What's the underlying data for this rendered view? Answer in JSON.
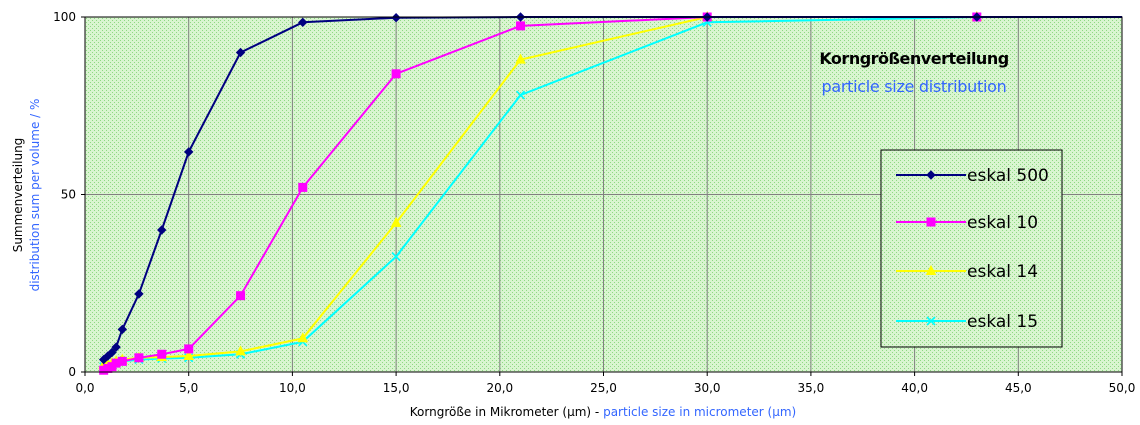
{
  "chart_data": {
    "type": "line",
    "xlabel_parts": [
      "Korngröße in Mikrometer (µm) - ",
      "particle size in micrometer (µm)"
    ],
    "ylabel_parts": [
      "Summenverteilung",
      "distribution sum per volume / %"
    ],
    "xlim": [
      0,
      50
    ],
    "ylim": [
      0,
      100
    ],
    "x_ticks": [
      "0,0",
      "5,0",
      "10,0",
      "15,0",
      "20,0",
      "25,0",
      "30,0",
      "35,0",
      "40,0",
      "45,0",
      "50,0"
    ],
    "y_ticks": [
      "0",
      "50",
      "100"
    ],
    "grid": true,
    "plot_background": "#d9f5d0",
    "annotations": [
      "Korngrößenverteilung",
      "particle size distribution"
    ],
    "legend_position": "right",
    "series": [
      {
        "name": "eskal 500",
        "color": "#000080",
        "marker": "diamond",
        "points": [
          [
            0.9,
            3.5
          ],
          [
            1.1,
            4.5
          ],
          [
            1.3,
            5.5
          ],
          [
            1.5,
            7.0
          ],
          [
            1.8,
            12.0
          ],
          [
            2.6,
            22.0
          ],
          [
            3.7,
            40.0
          ],
          [
            5.0,
            62.0
          ],
          [
            7.5,
            90.0
          ],
          [
            10.5,
            98.5
          ],
          [
            15.0,
            99.8
          ],
          [
            21.0,
            100
          ],
          [
            30.0,
            100
          ],
          [
            43.0,
            100
          ],
          [
            50.0,
            100
          ]
        ]
      },
      {
        "name": "eskal 10",
        "color": "#ff00ff",
        "marker": "square",
        "points": [
          [
            0.9,
            0.5
          ],
          [
            1.1,
            1.0
          ],
          [
            1.3,
            1.5
          ],
          [
            1.5,
            2.5
          ],
          [
            1.8,
            3.0
          ],
          [
            2.6,
            4.0
          ],
          [
            3.7,
            5.0
          ],
          [
            5.0,
            6.5
          ],
          [
            7.5,
            21.5
          ],
          [
            10.5,
            52.0
          ],
          [
            15.0,
            84.0
          ],
          [
            21.0,
            97.5
          ],
          [
            30.0,
            100
          ],
          [
            43.0,
            100
          ],
          [
            50.0,
            100
          ]
        ]
      },
      {
        "name": "eskal 14",
        "color": "#ffff00",
        "marker": "triangle",
        "points": [
          [
            0.9,
            2.0
          ],
          [
            1.1,
            2.2
          ],
          [
            1.3,
            2.5
          ],
          [
            1.5,
            3.0
          ],
          [
            1.8,
            3.5
          ],
          [
            2.6,
            4.0
          ],
          [
            3.7,
            4.2
          ],
          [
            5.0,
            4.5
          ],
          [
            7.5,
            5.8
          ],
          [
            10.5,
            9.5
          ],
          [
            15.0,
            42.0
          ],
          [
            21.0,
            88.0
          ],
          [
            30.0,
            100
          ],
          [
            43.0,
            100
          ],
          [
            50.0,
            100
          ]
        ]
      },
      {
        "name": "eskal 15",
        "color": "#00ffff",
        "marker": "x",
        "points": [
          [
            0.9,
            1.5
          ],
          [
            1.1,
            1.8
          ],
          [
            1.3,
            2.2
          ],
          [
            1.5,
            2.5
          ],
          [
            1.8,
            3.0
          ],
          [
            2.6,
            3.5
          ],
          [
            3.7,
            3.8
          ],
          [
            5.0,
            4.0
          ],
          [
            7.5,
            5.0
          ],
          [
            10.5,
            8.5
          ],
          [
            15.0,
            32.5
          ],
          [
            21.0,
            78.0
          ],
          [
            30.0,
            98.5
          ],
          [
            43.0,
            100
          ],
          [
            50.0,
            100
          ]
        ]
      }
    ]
  }
}
